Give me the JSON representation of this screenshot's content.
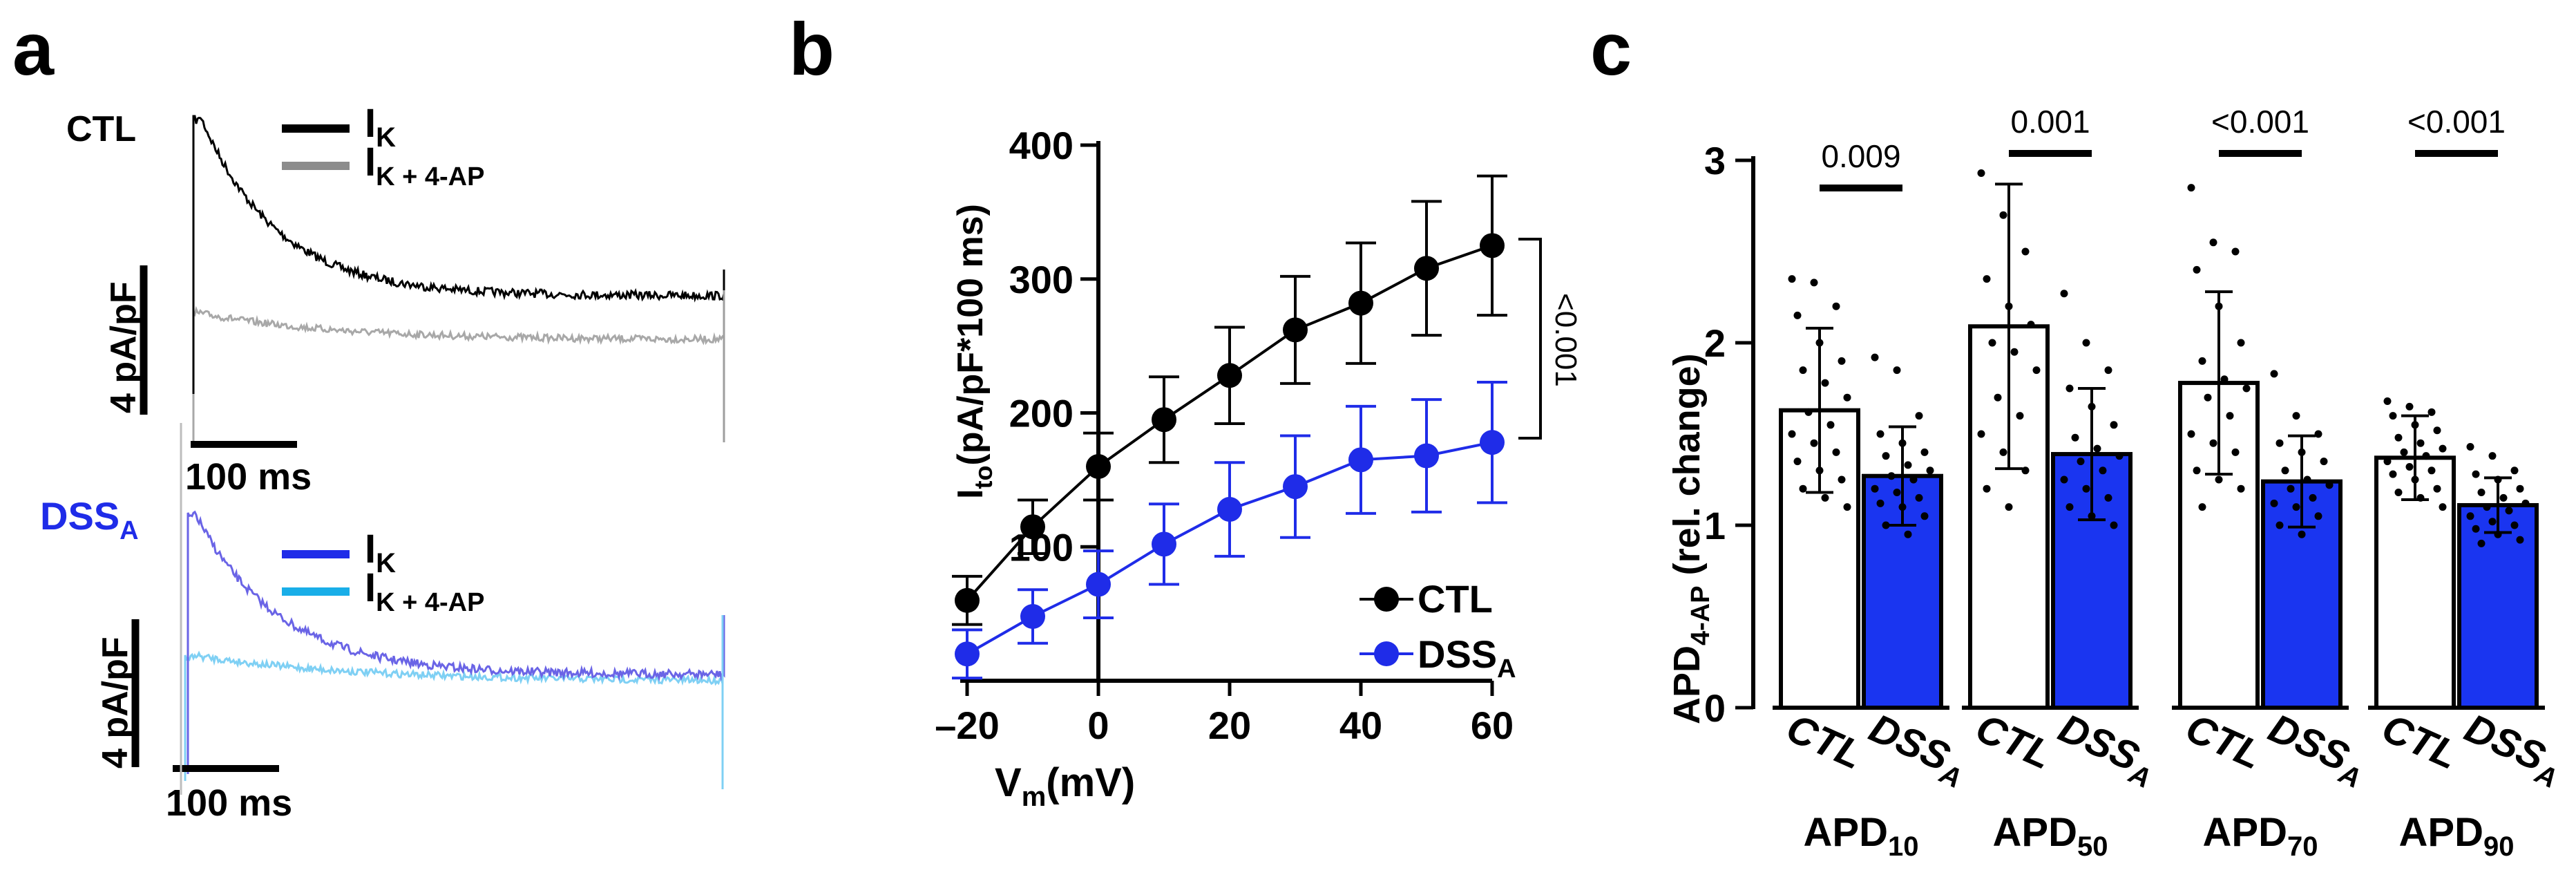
{
  "colors": {
    "ctl": "#000000",
    "ctl_4ap": "#a8a8a8",
    "dss": "#1f2ce8",
    "dss_trace": "#6a64e6",
    "dss_4ap": "#7fd0f4",
    "legend_ctl_4ap": "#8c8c8c",
    "legend_dss_4ap": "#19aee8",
    "bar_dss": "#1a35f0"
  },
  "panel_a": {
    "label": "a",
    "ctl_label": "CTL",
    "dss_label": "DSS",
    "dss_sub": "A",
    "legend_ik": "I",
    "legend_ik_sub": "K",
    "legend_ik4ap": "I",
    "legend_ik4ap_sub": "K + 4-AP",
    "scale_y": "4 pA/pF",
    "scale_x": "100 ms"
  },
  "panel_b": {
    "label": "b"
  },
  "panel_c": {
    "label": "c"
  },
  "chart_data": [
    {
      "type": "line",
      "title": "",
      "xlabel": "V",
      "xlabel_sub": "m",
      "xlabel_rest": "(mV)",
      "ylabel": "I",
      "ylabel_sub": "to",
      "ylabel_rest": "(pA/pF*100 ms)",
      "x": [
        -20,
        -10,
        0,
        10,
        20,
        30,
        40,
        50,
        60
      ],
      "xticks": [
        "–20",
        "0",
        "20",
        "40",
        "60"
      ],
      "xtick_values": [
        -20,
        0,
        20,
        40,
        60
      ],
      "yticks": [
        "100",
        "200",
        "300",
        "400"
      ],
      "ytick_values": [
        100,
        200,
        300,
        400
      ],
      "xlim": [
        -20,
        60
      ],
      "ylim": [
        0,
        400
      ],
      "legend_position": "bottom-right",
      "series": [
        {
          "name": "CTL",
          "name_sub": "",
          "color": "#000000",
          "values": [
            60,
            115,
            160,
            195,
            228,
            262,
            282,
            308,
            325
          ],
          "err": [
            18,
            20,
            25,
            32,
            36,
            40,
            45,
            50,
            52
          ]
        },
        {
          "name": "DSS",
          "name_sub": "A",
          "color": "#1f2ce8",
          "values": [
            20,
            48,
            72,
            102,
            128,
            145,
            165,
            168,
            178
          ],
          "err": [
            18,
            20,
            25,
            30,
            35,
            38,
            40,
            42,
            45
          ]
        }
      ],
      "annotation": "<0.001"
    },
    {
      "type": "bar",
      "ylabel": "APD",
      "ylabel_sub": "4-AP",
      "ylabel_rest": " (rel. change)",
      "yticks": [
        "0",
        "1",
        "2",
        "3"
      ],
      "ytick_values": [
        0,
        1,
        2,
        3
      ],
      "ylim": [
        0,
        3
      ],
      "categories": [
        "CTL",
        "DSS"
      ],
      "category_subs": [
        "",
        "A"
      ],
      "groups": [
        {
          "name": "APD",
          "sub": "10",
          "pvalue": "0.009",
          "values": [
            1.63,
            1.27
          ],
          "sd": [
            0.45,
            0.27
          ],
          "points": [
            [
              2.35,
              2.33,
              2.2,
              2.15,
              2.0,
              1.9,
              1.85,
              1.78,
              1.7,
              1.62,
              1.55,
              1.5,
              1.45,
              1.4,
              1.35,
              1.3,
              1.25,
              1.2,
              1.15,
              1.1
            ],
            [
              1.92,
              1.85,
              1.6,
              1.5,
              1.45,
              1.4,
              1.38,
              1.33,
              1.3,
              1.27,
              1.25,
              1.2,
              1.18,
              1.15,
              1.12,
              1.1,
              1.05,
              1.0,
              0.95
            ]
          ]
        },
        {
          "name": "APD",
          "sub": "50",
          "pvalue": "0.001",
          "values": [
            2.09,
            1.39
          ],
          "sd": [
            0.78,
            0.36
          ],
          "points": [
            [
              2.93,
              2.7,
              2.5,
              2.35,
              2.2,
              2.1,
              2.0,
              1.95,
              1.85,
              1.7,
              1.6,
              1.5,
              1.4,
              1.3,
              1.2,
              1.1
            ],
            [
              2.27,
              2.0,
              1.85,
              1.75,
              1.65,
              1.55,
              1.48,
              1.42,
              1.38,
              1.35,
              1.3,
              1.25,
              1.2,
              1.15,
              1.1,
              1.05,
              1.0
            ]
          ]
        },
        {
          "name": "APD",
          "sub": "70",
          "pvalue": "<0.001",
          "values": [
            1.78,
            1.24
          ],
          "sd": [
            0.5,
            0.25
          ],
          "points": [
            [
              2.85,
              2.55,
              2.5,
              2.4,
              2.2,
              2.0,
              1.9,
              1.8,
              1.75,
              1.7,
              1.6,
              1.5,
              1.45,
              1.4,
              1.3,
              1.25,
              1.2,
              1.1
            ],
            [
              1.83,
              1.6,
              1.5,
              1.45,
              1.4,
              1.35,
              1.3,
              1.25,
              1.22,
              1.2,
              1.15,
              1.12,
              1.1,
              1.05,
              1.0,
              0.95
            ]
          ]
        },
        {
          "name": "APD",
          "sub": "90",
          "pvalue": "<0.001",
          "values": [
            1.37,
            1.11
          ],
          "sd": [
            0.23,
            0.15
          ],
          "points": [
            [
              1.68,
              1.65,
              1.62,
              1.6,
              1.55,
              1.52,
              1.48,
              1.45,
              1.42,
              1.4,
              1.38,
              1.35,
              1.32,
              1.3,
              1.28,
              1.25,
              1.2,
              1.18,
              1.15,
              1.1
            ],
            [
              1.43,
              1.38,
              1.3,
              1.28,
              1.25,
              1.2,
              1.18,
              1.15,
              1.12,
              1.1,
              1.08,
              1.05,
              1.02,
              1.0,
              0.98,
              0.95,
              0.92,
              0.9
            ]
          ]
        }
      ]
    }
  ]
}
